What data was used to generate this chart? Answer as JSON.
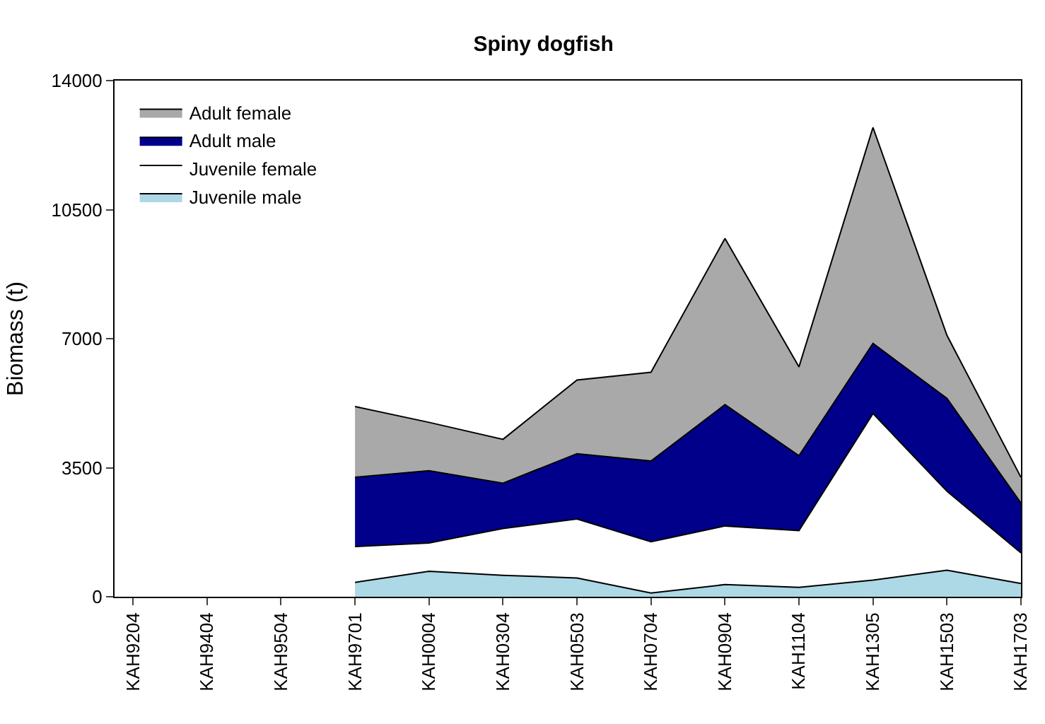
{
  "chart_data": {
    "type": "area",
    "title": "Spiny dogfish",
    "ylabel": "Biomass (t)",
    "stacked": true,
    "categories": [
      "KAH9204",
      "KAH9404",
      "KAH9504",
      "KAH9701",
      "KAH0004",
      "KAH0304",
      "KAH0503",
      "KAH0704",
      "KAH0904",
      "KAH1104",
      "KAH1305",
      "KAH1503",
      "KAH1703"
    ],
    "series": [
      {
        "name": "Juvenile male",
        "color": "#add8e6",
        "values": [
          null,
          null,
          null,
          390,
          690,
          580,
          510,
          100,
          330,
          255,
          450,
          720,
          360
        ]
      },
      {
        "name": "Juvenile female",
        "color": "#ffffff",
        "values": [
          null,
          null,
          null,
          970,
          770,
          1270,
          1600,
          1390,
          1590,
          1540,
          4520,
          2140,
          830
        ]
      },
      {
        "name": "Adult male",
        "color": "#00008b",
        "values": [
          null,
          null,
          null,
          1880,
          1960,
          1230,
          1770,
          2190,
          3290,
          2030,
          1900,
          2520,
          1350
        ]
      },
      {
        "name": "Adult female",
        "color": "#a9a9a9",
        "values": [
          null,
          null,
          null,
          1920,
          1310,
          1190,
          2000,
          2410,
          4510,
          2410,
          5860,
          1710,
          700
        ]
      }
    ],
    "ylim": [
      0,
      14000
    ],
    "yticks": [
      0,
      3500,
      7000,
      10500,
      14000
    ],
    "legend": "top left"
  }
}
